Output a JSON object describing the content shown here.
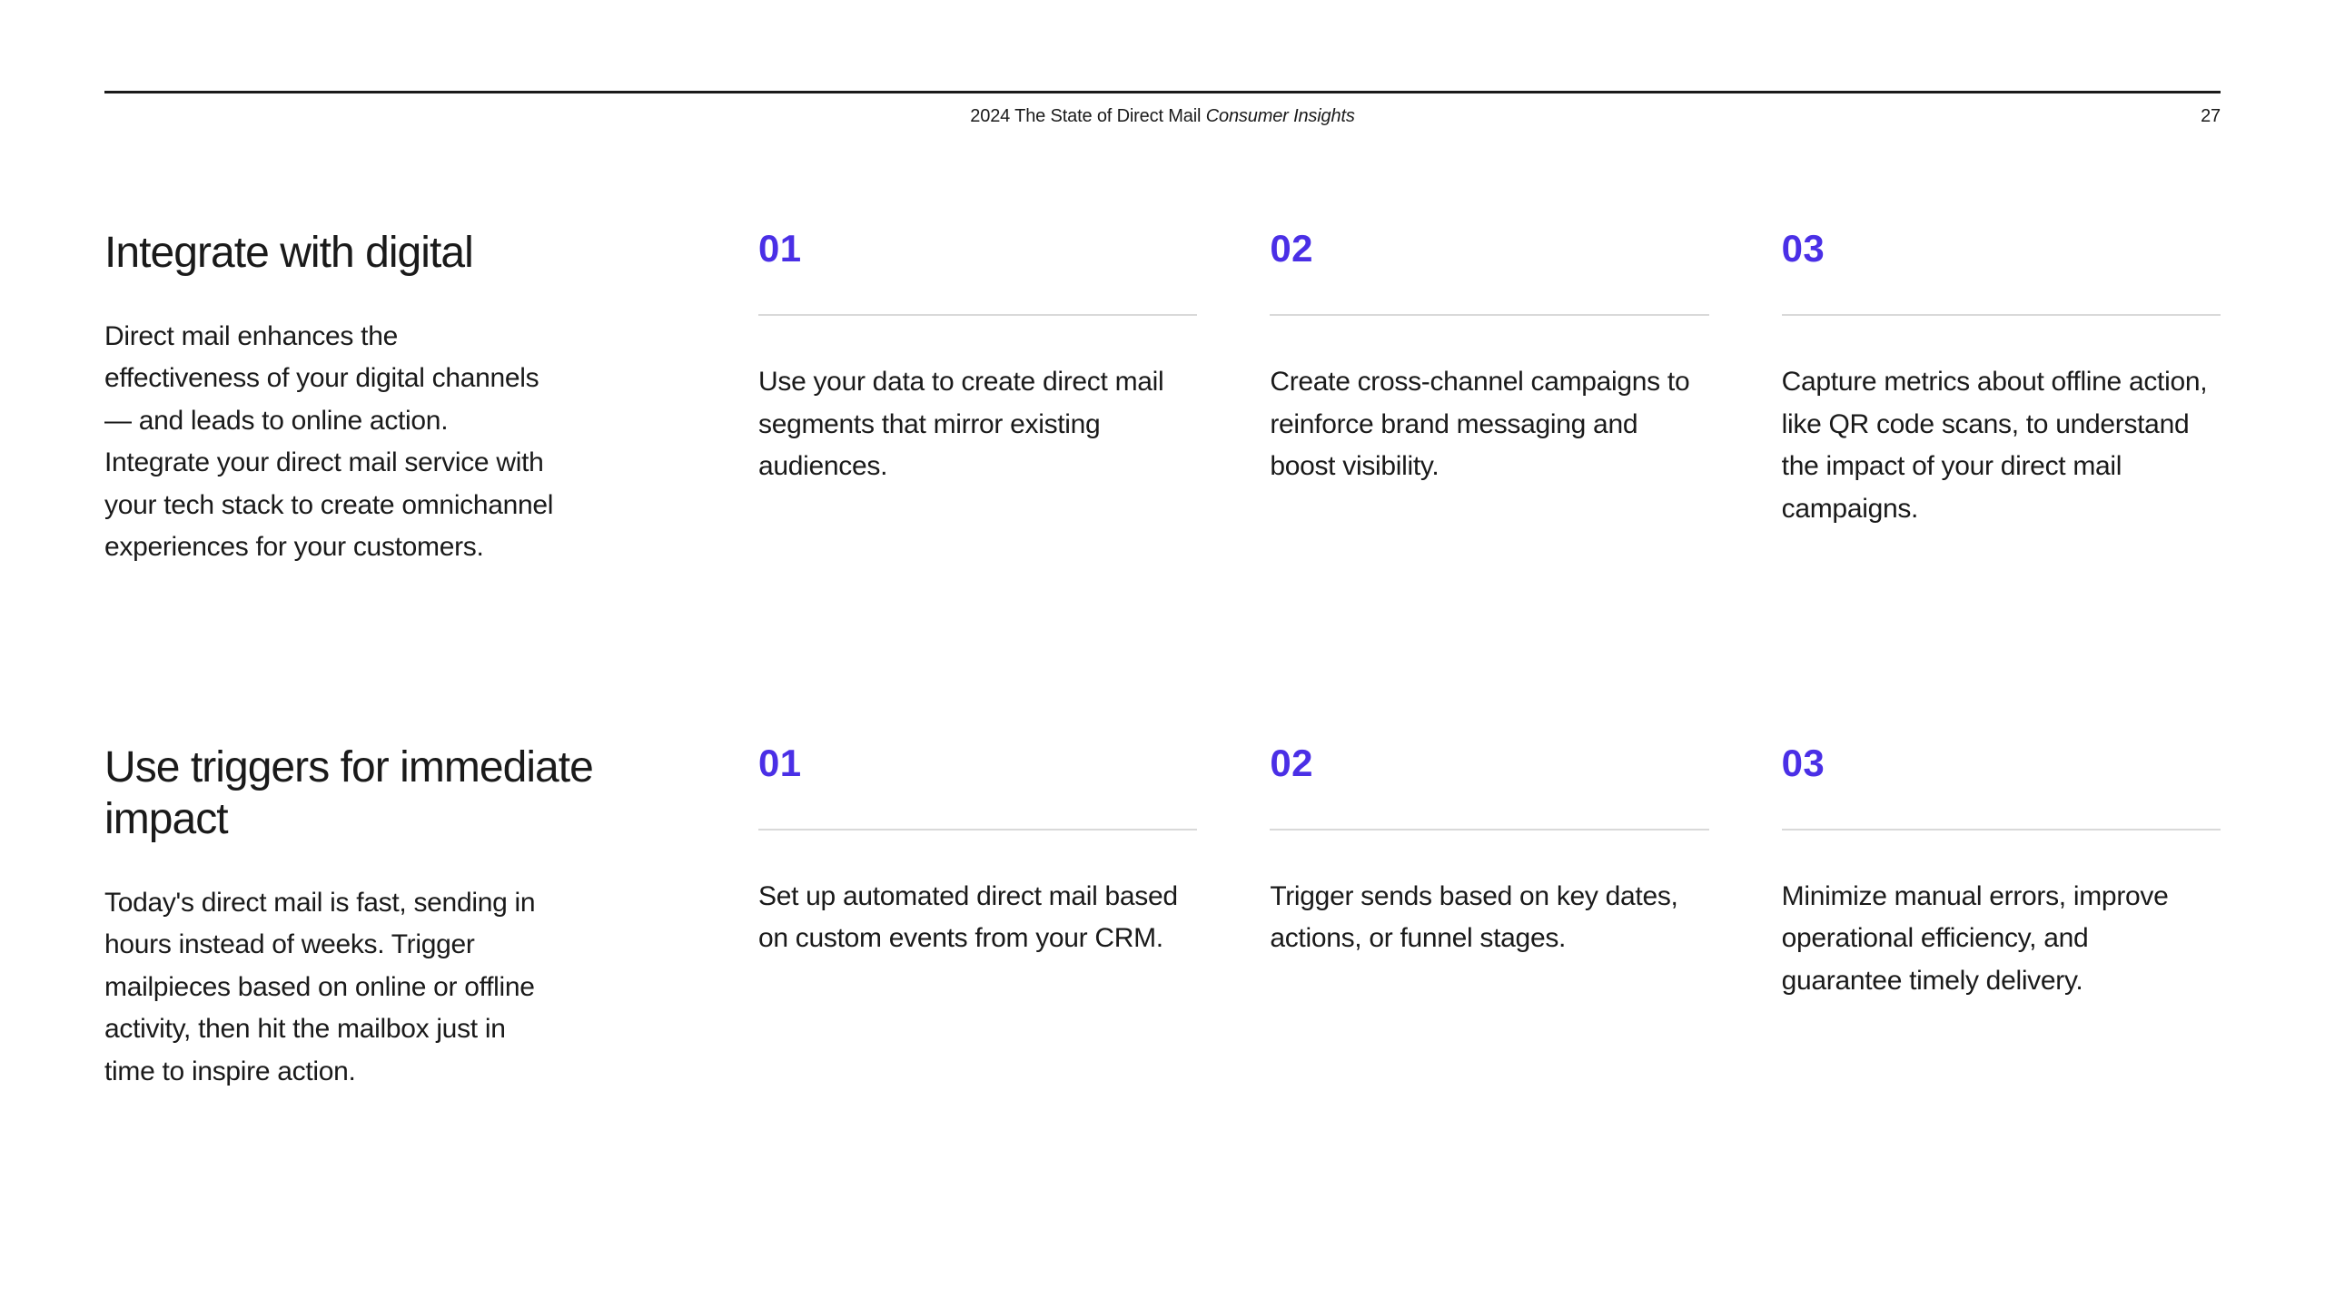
{
  "colors": {
    "accent": "#4a2fe6",
    "text": "#1a1a1a",
    "rule": "#1a1a1a",
    "divider": "#d9d9d9",
    "background": "#ffffff"
  },
  "typography": {
    "heading_fontsize": 48,
    "number_fontsize": 42,
    "body_fontsize": 30,
    "header_fontsize": 20
  },
  "header": {
    "title_plain": "2024 The State of Direct Mail ",
    "title_italic": "Consumer Insights",
    "page_number": "27"
  },
  "sections": [
    {
      "title": "Integrate with digital",
      "intro": "Direct mail enhances the effectiveness of your digital channels — and leads to online action. Integrate your direct mail service with your tech stack to create omnichannel experiences for your customers.",
      "items": [
        {
          "number": "01",
          "text": "Use your data to create direct mail segments that mirror existing audiences."
        },
        {
          "number": "02",
          "text": "Create cross-channel campaigns to reinforce brand messaging and boost visibility."
        },
        {
          "number": "03",
          "text": "Capture metrics about offline action, like QR code scans, to understand the impact of your direct mail campaigns."
        }
      ]
    },
    {
      "title": "Use triggers for immediate impact",
      "intro": "Today's direct mail is fast, sending in hours instead of weeks. Trigger mailpieces based on online or offline activity, then hit the mailbox just in time to inspire action.",
      "items": [
        {
          "number": "01",
          "text": "Set up automated direct mail based on custom events from your CRM."
        },
        {
          "number": "02",
          "text": "Trigger sends based on key dates, actions, or funnel stages."
        },
        {
          "number": "03",
          "text": "Minimize manual errors, improve operational efficiency, and guarantee timely delivery."
        }
      ]
    }
  ]
}
